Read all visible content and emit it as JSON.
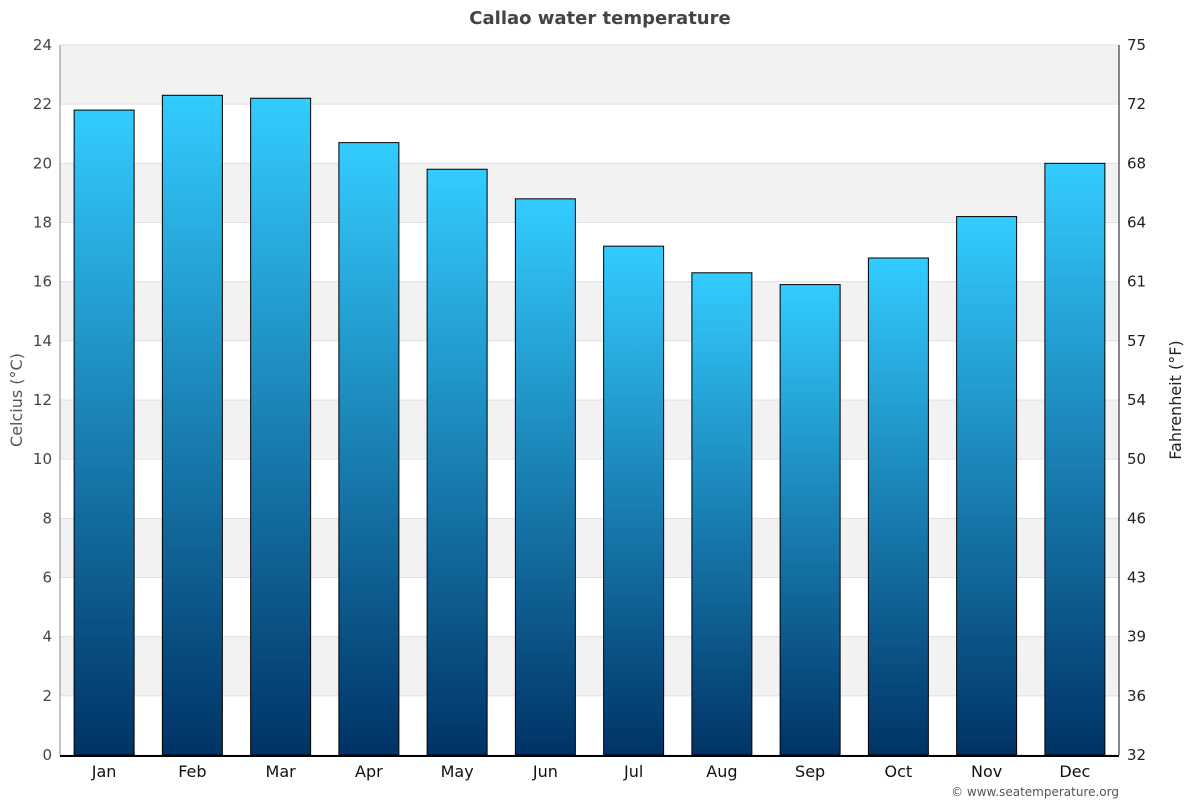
{
  "chart_data": {
    "type": "bar",
    "title": "Callao water temperature",
    "ylabel": "Celcius (°C)",
    "y2label": "Fahrenheit (°F)",
    "categories": [
      "Jan",
      "Feb",
      "Mar",
      "Apr",
      "May",
      "Jun",
      "Jul",
      "Aug",
      "Sep",
      "Oct",
      "Nov",
      "Dec"
    ],
    "values": [
      21.8,
      22.3,
      22.2,
      20.7,
      19.8,
      18.8,
      17.2,
      16.3,
      15.9,
      16.8,
      18.2,
      20.0
    ],
    "ylim": [
      0,
      24
    ],
    "yticks": [
      "0",
      "2",
      "4",
      "6",
      "8",
      "10",
      "12",
      "14",
      "16",
      "18",
      "20",
      "22",
      "24"
    ],
    "y2ticks": [
      "32",
      "36",
      "39",
      "43",
      "46",
      "50",
      "54",
      "57",
      "61",
      "64",
      "68",
      "72",
      "75"
    ],
    "grid": true,
    "colors": {
      "bar_top": "#33ccff",
      "bar_bottom": "#003366",
      "band": "#f2f2f2"
    }
  },
  "credit": "© www.seatemperature.org"
}
